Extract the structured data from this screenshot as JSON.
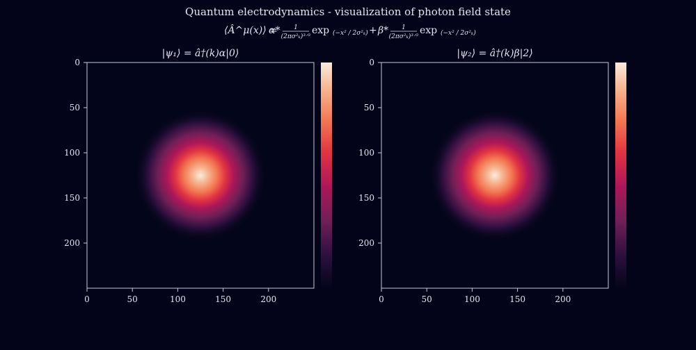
{
  "figure": {
    "title": "Quantum electrodynamics - visualization of photon field state",
    "formula": {
      "lhs": "⟨Â^μ(x)⟩ =",
      "alpha": "α*",
      "beta": "β*",
      "plus": "+",
      "frac_num": "1",
      "frac_den": "(2πσ²ₖ)³ᐟ²",
      "exp": "exp",
      "exp_arg": "(−x² / 2σ²ₖ)"
    }
  },
  "colors": {
    "background": "#03031a",
    "axes": "#c8c8d8",
    "colormap": [
      "#03051a",
      "#2b0f3d",
      "#701f57",
      "#ad1759",
      "#e13342",
      "#f37651",
      "#f6b48f",
      "#faebdd"
    ]
  },
  "chart_data": [
    {
      "type": "heatmap",
      "title": "|ψ₁⟩ = â†(k)α|0⟩",
      "colormap": "rocket",
      "colorbar": true,
      "xlim": [
        0,
        250
      ],
      "ylim": [
        250,
        0
      ],
      "xticks": [
        0,
        50,
        100,
        150,
        200
      ],
      "yticks": [
        0,
        50,
        100,
        150,
        200
      ],
      "center": [
        125,
        125
      ],
      "sigma": 28
    },
    {
      "type": "heatmap",
      "title": "|ψ₂⟩ = â†(k)β|2⟩",
      "colormap": "rocket",
      "colorbar": true,
      "xlim": [
        0,
        250
      ],
      "ylim": [
        250,
        0
      ],
      "xticks": [
        0,
        50,
        100,
        150,
        200
      ],
      "yticks": [
        0,
        50,
        100,
        150,
        200
      ],
      "center": [
        125,
        125
      ],
      "sigma": 28
    }
  ]
}
